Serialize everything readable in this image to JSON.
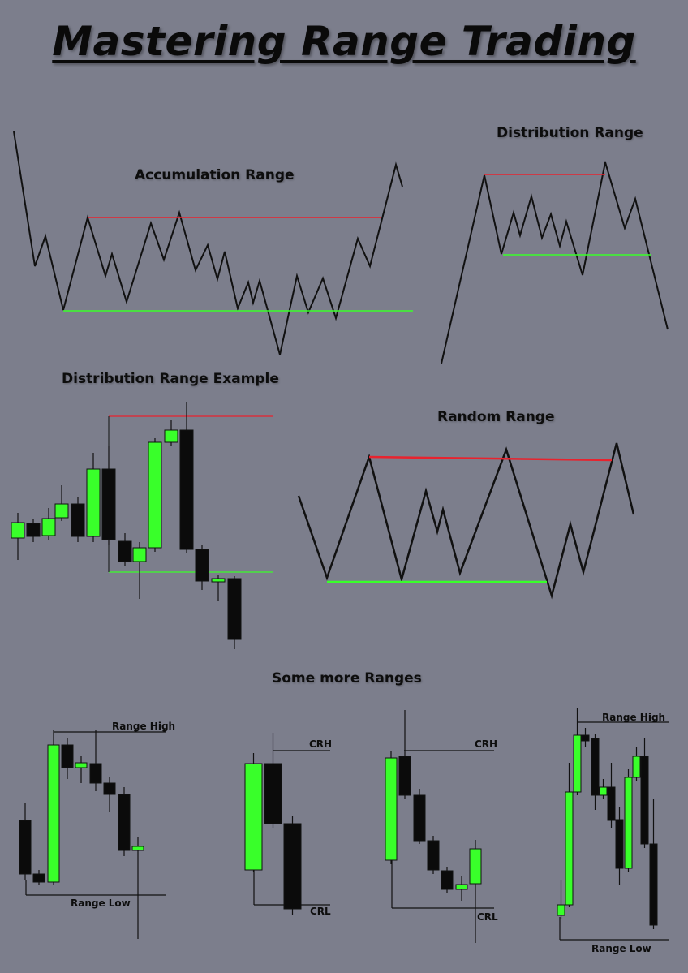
{
  "title": "Mastering Range Trading",
  "sections": {
    "accumulation": "Accumulation Range",
    "distribution": "Distribution Range",
    "distribution_example": "Distribution Range Example",
    "random": "Random Range",
    "more": "Some more Ranges"
  },
  "range_labels": {
    "range_high": "Range High",
    "range_low": "Range Low",
    "crh": "CRH",
    "crl": "CRL"
  },
  "colors": {
    "background": "#7c7e8c",
    "line": "#111111",
    "resistance": "#e8232e",
    "support": "#39ff2a",
    "bull_candle": "#39ff2a",
    "bear_candle": "#0b0b0b"
  }
}
